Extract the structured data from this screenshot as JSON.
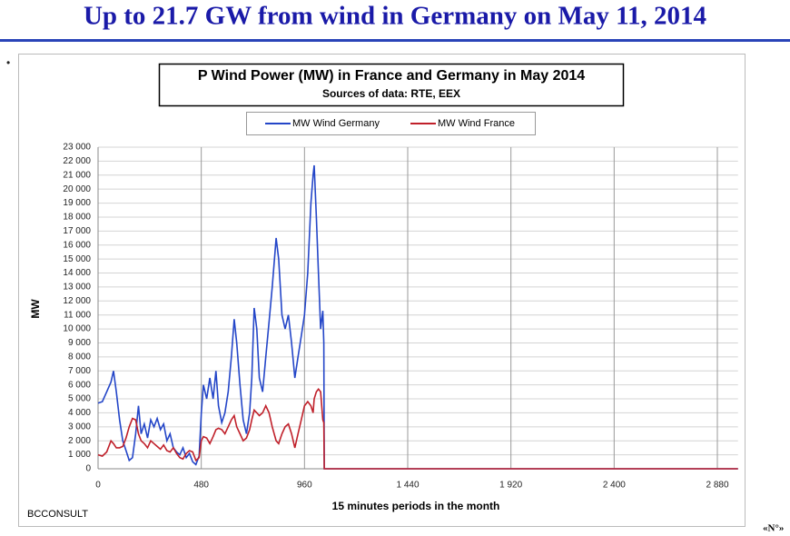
{
  "slide_title": "Up to 21.7 GW from wind in Germany on May 11, 2014",
  "bullet": "•",
  "footer": "BCCONSULT",
  "page_number": "«N°»",
  "chart_data": {
    "type": "line",
    "title": "P Wind Power (MW) in France and Germany in May 2014",
    "subtitle": "Sources of data: RTE, EEX",
    "x_label": "15 minutes periods in the month",
    "y_label": "MW",
    "x": [
      0,
      20,
      40,
      60,
      72,
      85,
      100,
      115,
      130,
      145,
      160,
      175,
      188,
      200,
      215,
      230,
      245,
      260,
      275,
      290,
      305,
      320,
      335,
      350,
      365,
      380,
      395,
      410,
      425,
      440,
      455,
      470,
      480,
      490,
      505,
      520,
      535,
      548,
      560,
      575,
      590,
      605,
      620,
      633,
      645,
      660,
      675,
      690,
      705,
      715,
      726,
      738,
      750,
      765,
      780,
      795,
      810,
      828,
      840,
      855,
      870,
      885,
      900,
      915,
      930,
      945,
      960,
      975,
      990,
      1000,
      1005,
      1015,
      1025,
      1035,
      1045,
      1050,
      1052,
      2976
    ],
    "series": [
      {
        "name": "MW Wind Germany",
        "color": "#2446c8",
        "values": [
          4700,
          4800,
          5500,
          6200,
          7000,
          5500,
          3500,
          2000,
          1300,
          600,
          800,
          2500,
          4500,
          2500,
          3200,
          2200,
          3500,
          3000,
          3600,
          2800,
          3200,
          2000,
          2500,
          1500,
          1200,
          1000,
          1500,
          800,
          1100,
          500,
          300,
          900,
          4000,
          6000,
          5000,
          6500,
          5000,
          7000,
          4500,
          3300,
          4000,
          5500,
          8000,
          10700,
          9000,
          6000,
          3500,
          2500,
          4000,
          6500,
          11500,
          10000,
          6500,
          5500,
          8000,
          10500,
          13000,
          16500,
          15000,
          11000,
          10000,
          11000,
          9000,
          6500,
          8000,
          9500,
          11000,
          14000,
          19000,
          21000,
          21700,
          18000,
          14000,
          10000,
          11300,
          9000,
          0,
          0
        ]
      },
      {
        "name": "MW Wind France",
        "color": "#c0202a",
        "values": [
          1000,
          900,
          1200,
          2000,
          1800,
          1500,
          1500,
          1600,
          2200,
          3000,
          3600,
          3500,
          2500,
          2000,
          1800,
          1500,
          2000,
          1800,
          1600,
          1400,
          1700,
          1300,
          1200,
          1500,
          1100,
          800,
          700,
          1100,
          1300,
          1200,
          600,
          800,
          2000,
          2300,
          2200,
          1800,
          2300,
          2800,
          2900,
          2800,
          2500,
          3000,
          3500,
          3800,
          3000,
          2500,
          2000,
          2200,
          2800,
          3500,
          4200,
          4000,
          3800,
          4000,
          4500,
          4000,
          3000,
          2000,
          1800,
          2500,
          3000,
          3200,
          2500,
          1500,
          2500,
          3500,
          4500,
          4800,
          4500,
          4000,
          5000,
          5500,
          5700,
          5500,
          3500,
          3300,
          0,
          0
        ]
      }
    ],
    "xlim": [
      0,
      2976
    ],
    "xticks": [
      0,
      480,
      960,
      {
        "value": 1440,
        "label": "1 440"
      },
      {
        "value": 1920,
        "label": "1 920"
      },
      {
        "value": 2400,
        "label": "2 400"
      },
      {
        "value": 2880,
        "label": "2 880"
      }
    ],
    "ylim": [
      0,
      23000
    ],
    "yticks": [
      0,
      {
        "value": 1000,
        "label": "1 000"
      },
      {
        "value": 2000,
        "label": "2 000"
      },
      {
        "value": 3000,
        "label": "3 000"
      },
      {
        "value": 4000,
        "label": "4 000"
      },
      {
        "value": 5000,
        "label": "5 000"
      },
      {
        "value": 6000,
        "label": "6 000"
      },
      {
        "value": 7000,
        "label": "7 000"
      },
      {
        "value": 8000,
        "label": "8 000"
      },
      {
        "value": 9000,
        "label": "9 000"
      },
      {
        "value": 10000,
        "label": "10 000"
      },
      {
        "value": 11000,
        "label": "11 000"
      },
      {
        "value": 12000,
        "label": "12 000"
      },
      {
        "value": 13000,
        "label": "13 000"
      },
      {
        "value": 14000,
        "label": "14 000"
      },
      {
        "value": 15000,
        "label": "15 000"
      },
      {
        "value": 16000,
        "label": "16 000"
      },
      {
        "value": 17000,
        "label": "17 000"
      },
      {
        "value": 18000,
        "label": "18 000"
      },
      {
        "value": 19000,
        "label": "19 000"
      },
      {
        "value": 20000,
        "label": "20 000"
      },
      {
        "value": 21000,
        "label": "21 000"
      },
      {
        "value": 22000,
        "label": "22 000"
      },
      {
        "value": 23000,
        "label": "23 000"
      }
    ],
    "grid": true,
    "legend": "top"
  }
}
